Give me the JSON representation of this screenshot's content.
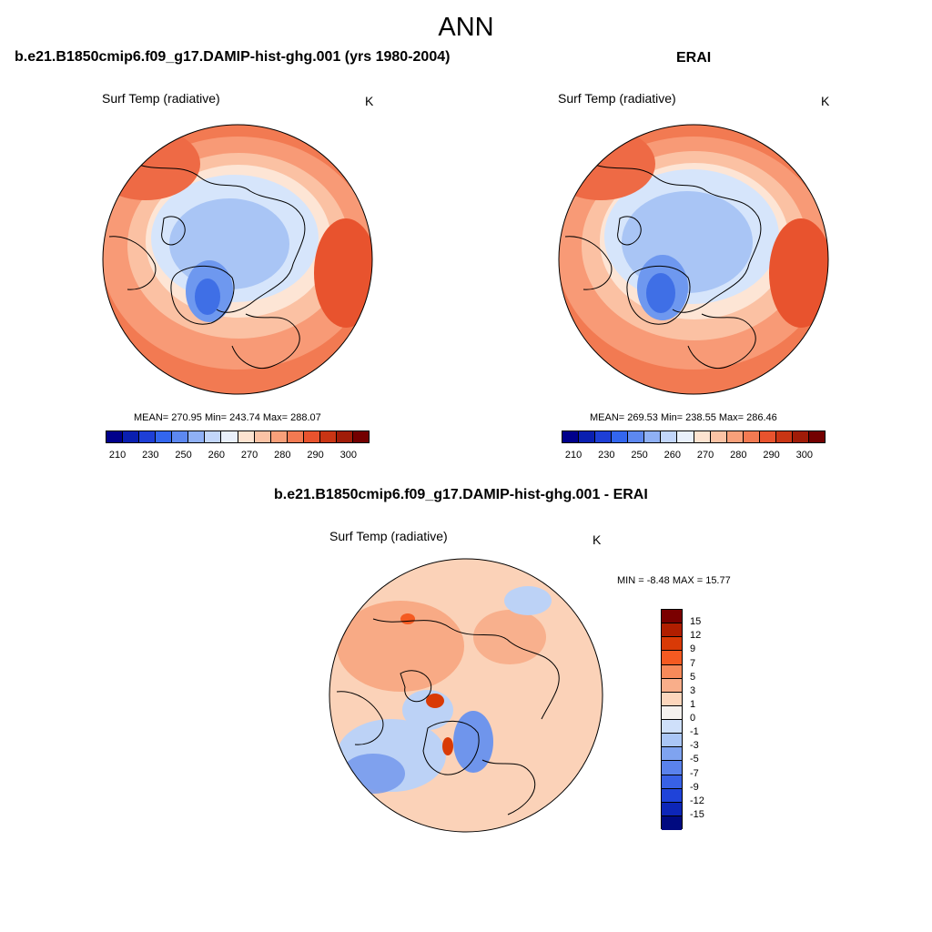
{
  "main_title": "ANN",
  "panels": [
    {
      "title": "b.e21.B1850cmip6.f09_g17.DAMIP-hist-ghg.001 (yrs 1980-2004)",
      "variable": "Surf Temp (radiative)",
      "units": "K",
      "stats": "MEAN= 270.95  Min= 243.74  Max= 288.07"
    },
    {
      "title": "ERAI",
      "variable": "Surf Temp (radiative)",
      "units": "K",
      "stats": "MEAN= 269.53  Min= 238.55  Max= 286.46"
    },
    {
      "title": "b.e21.B1850cmip6.f09_g17.DAMIP-hist-ghg.001 - ERAI",
      "variable": "Surf Temp (radiative)",
      "units": "K",
      "stats": "MIN =  -8.48 MAX =  15.77"
    }
  ],
  "abs_colorbar": {
    "colors": [
      "#00008b",
      "#0a1fb0",
      "#1e3fd6",
      "#3366ee",
      "#5d88f0",
      "#8fb0f5",
      "#c2d6fa",
      "#e9f0fb",
      "#fde3d0",
      "#fbc3a5",
      "#f8a07a",
      "#f27a52",
      "#e8532e",
      "#c93514",
      "#a01c08",
      "#730000"
    ],
    "tick_labels": [
      "210",
      "230",
      "250",
      "260",
      "270",
      "280",
      "290",
      "300"
    ]
  },
  "diff_colorbar": {
    "colors": [
      "#7a0000",
      "#b01e00",
      "#d93a06",
      "#f55a21",
      "#f78a5a",
      "#f9ae8a",
      "#fcd6bc",
      "#f4f1ee",
      "#cfe0fa",
      "#aac6f6",
      "#7fa3f0",
      "#5a82ec",
      "#3861e6",
      "#1f43d9",
      "#0d26b8",
      "#000a80"
    ],
    "labels": [
      "15",
      "12",
      "9",
      "7",
      "5",
      "3",
      "1",
      "0",
      "-1",
      "-3",
      "-5",
      "-7",
      "-9",
      "-12",
      "-15"
    ]
  },
  "map_colors": {
    "warm_dark": "#ee6a45",
    "warm_mid": "#f89a76",
    "warm_light": "#fbc1a3",
    "neutral": "#fde5d5",
    "cold_light": "#d6e5fb",
    "cold_mid": "#a9c5f5",
    "cold_dark": "#6e98ef",
    "cold_deep": "#3f6fe6",
    "diff_base": "#fbd2b8",
    "diff_warm": "#f6996f",
    "diff_cold": "#bcd2f6",
    "diff_colder": "#6f95ec"
  }
}
